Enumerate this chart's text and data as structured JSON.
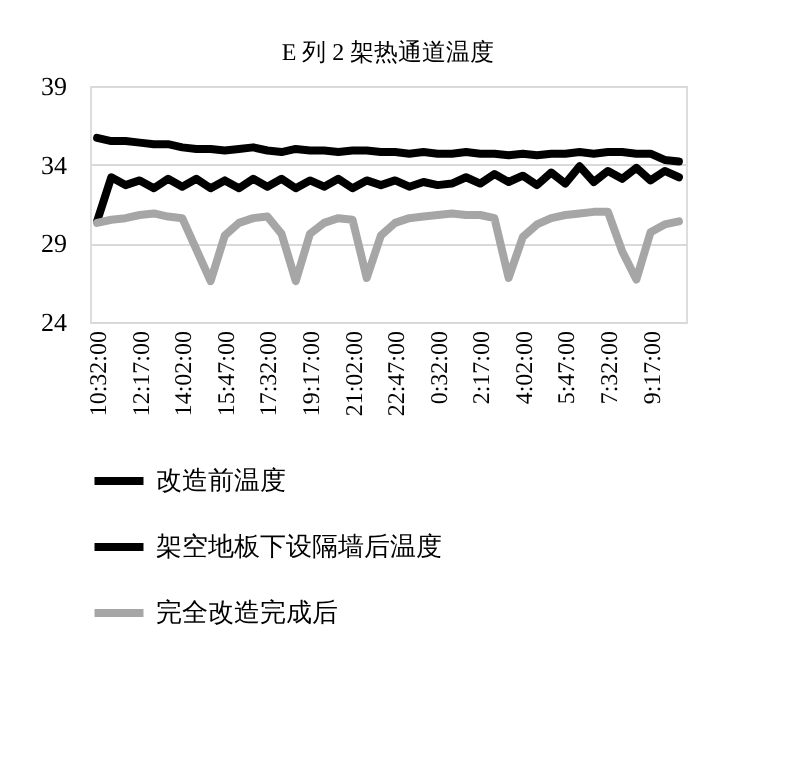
{
  "chart_data": {
    "type": "line",
    "title": "E 列 2 架热通道温度",
    "categories": [
      "10:32:00",
      null,
      null,
      "12:17:00",
      null,
      null,
      "14:02:00",
      null,
      null,
      "15:47:00",
      null,
      null,
      "17:32:00",
      null,
      null,
      "19:17:00",
      null,
      null,
      "21:02:00",
      null,
      null,
      "22:47:00",
      null,
      null,
      "0:32:00",
      null,
      null,
      "2:17:00",
      null,
      null,
      "4:02:00",
      null,
      null,
      "5:47:00",
      null,
      null,
      "7:32:00",
      null,
      null,
      "9:17:00",
      null,
      null
    ],
    "series": [
      {
        "name": "改造前温度",
        "color": "#000000",
        "values": [
          35.7,
          35.5,
          35.5,
          35.4,
          35.3,
          35.3,
          35.1,
          35.0,
          35.0,
          34.9,
          35.0,
          35.1,
          34.9,
          34.8,
          35.0,
          34.9,
          34.9,
          34.8,
          34.9,
          34.9,
          34.8,
          34.8,
          34.7,
          34.8,
          34.7,
          34.7,
          34.8,
          34.7,
          34.7,
          34.6,
          34.7,
          34.6,
          34.7,
          34.7,
          34.8,
          34.7,
          34.8,
          34.8,
          34.7,
          34.7,
          34.3,
          34.2
        ]
      },
      {
        "name": "架空地板下设隔墙后温度",
        "color": "#000000",
        "values": [
          30.4,
          33.2,
          32.7,
          33.0,
          32.5,
          33.1,
          32.6,
          33.1,
          32.5,
          33.0,
          32.5,
          33.1,
          32.6,
          33.1,
          32.5,
          33.0,
          32.6,
          33.1,
          32.5,
          33.0,
          32.7,
          33.0,
          32.6,
          32.9,
          32.7,
          32.8,
          33.2,
          32.8,
          33.4,
          32.9,
          33.3,
          32.7,
          33.5,
          32.8,
          33.9,
          32.9,
          33.6,
          33.1,
          33.8,
          33.0,
          33.6,
          33.2
        ]
      },
      {
        "name": "完全改造完成后",
        "color": "#a6a6a6",
        "values": [
          30.3,
          30.5,
          30.6,
          30.8,
          30.9,
          30.7,
          30.6,
          28.6,
          26.6,
          29.5,
          30.3,
          30.6,
          30.7,
          29.6,
          26.6,
          29.6,
          30.3,
          30.6,
          30.5,
          26.8,
          29.5,
          30.3,
          30.6,
          30.7,
          30.8,
          30.9,
          30.8,
          30.8,
          30.6,
          26.8,
          29.4,
          30.2,
          30.6,
          30.8,
          30.9,
          31.0,
          31.0,
          28.5,
          26.7,
          29.7,
          30.2,
          30.4
        ]
      }
    ],
    "ylim": [
      24,
      39
    ],
    "yticks": [
      24,
      29,
      34,
      39
    ],
    "grid": "y",
    "legend": "bottom"
  }
}
